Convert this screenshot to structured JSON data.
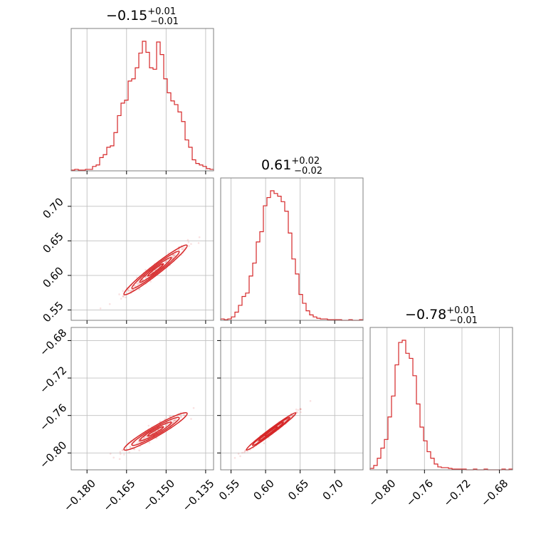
{
  "chart_data": {
    "type": "corner",
    "color": "#d62728",
    "parameters": [
      {
        "range": [
          -0.186,
          -0.132
        ],
        "ticks": [
          -0.18,
          -0.165,
          -0.15,
          -0.135
        ],
        "tick_labels": [
          "−0.180",
          "−0.165",
          "−0.150",
          "−0.135"
        ],
        "title_value": "−0.15",
        "title_plus": "+0.01",
        "title_minus": "−0.01"
      },
      {
        "range": [
          0.535,
          0.741
        ],
        "ticks": [
          0.55,
          0.6,
          0.65,
          0.7
        ],
        "tick_labels": [
          "0.55",
          "0.60",
          "0.65",
          "0.70"
        ],
        "title_value": "0.61",
        "title_plus": "+0.02",
        "title_minus": "−0.02"
      },
      {
        "range": [
          -0.818,
          -0.666
        ],
        "ticks": [
          -0.8,
          -0.76,
          -0.72,
          -0.68
        ],
        "tick_labels": [
          "−0.80",
          "−0.76",
          "−0.72",
          "−0.68"
        ],
        "title_value": "−0.78",
        "title_plus": "+0.01",
        "title_minus": "−0.01"
      }
    ],
    "histograms": [
      [
        1,
        2,
        1,
        1,
        2,
        2,
        6,
        8,
        18,
        22,
        32,
        34,
        52,
        75,
        92,
        96,
        122,
        125,
        140,
        160,
        176,
        161,
        140,
        138,
        175,
        158,
        125,
        106,
        95,
        90,
        80,
        67,
        42,
        32,
        15,
        10,
        8,
        6,
        3,
        2
      ],
      [
        2,
        1,
        2,
        5,
        12,
        22,
        35,
        40,
        65,
        84,
        115,
        130,
        168,
        180,
        190,
        186,
        182,
        174,
        160,
        128,
        90,
        68,
        38,
        25,
        14,
        8,
        5,
        3,
        2,
        2,
        1,
        1,
        1,
        1,
        0,
        0,
        1,
        0,
        0,
        1
      ],
      [
        2,
        6,
        16,
        30,
        42,
        73,
        102,
        145,
        176,
        179,
        161,
        154,
        130,
        91,
        59,
        40,
        25,
        16,
        8,
        4,
        3,
        3,
        2,
        1,
        1,
        1,
        1,
        0,
        0,
        1,
        0,
        0,
        1,
        0,
        0,
        0,
        0,
        1,
        0,
        1
      ]
    ],
    "pair_stats": [
      {
        "pair": [
          0,
          1
        ],
        "mean": [
          -0.154,
          0.608
        ],
        "sd": [
          0.006,
          0.018
        ],
        "corr": 0.97
      },
      {
        "pair": [
          0,
          2
        ],
        "mean": [
          -0.154,
          -0.777
        ],
        "sd": [
          0.006,
          0.01
        ],
        "corr": 0.95
      },
      {
        "pair": [
          1,
          2
        ],
        "mean": [
          0.608,
          -0.777
        ],
        "sd": [
          0.018,
          0.01
        ],
        "corr": 0.985
      }
    ],
    "contour_levels_sigma": [
      0.5,
      1.0,
      1.5,
      2.0
    ],
    "grid": true,
    "n_samples_shown": 260
  }
}
